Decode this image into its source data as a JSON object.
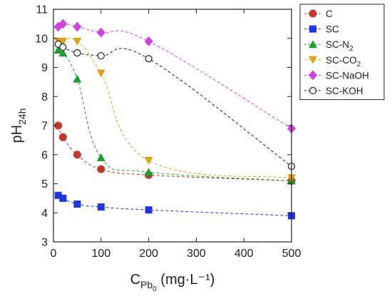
{
  "chart_data": {
    "type": "scatter",
    "xlabel": {
      "base": "C",
      "sub": "Pb",
      "subsub": "0",
      "unit": " (mg·L⁻¹)"
    },
    "ylabel": {
      "base": "pH",
      "sub": "24h"
    },
    "xlim": [
      0,
      500
    ],
    "ylim": [
      3,
      11
    ],
    "xticks": [
      0,
      100,
      200,
      300,
      400,
      500
    ],
    "yticks": [
      3,
      4,
      5,
      6,
      7,
      8,
      9,
      10,
      11
    ],
    "grid": false,
    "legend_position": "top-right outside",
    "series": [
      {
        "name": "C",
        "sub": "",
        "color": "#c0392b",
        "marker": "circle",
        "line": "dashed",
        "x": [
          10,
          20,
          50,
          100,
          200,
          500
        ],
        "y": [
          7.0,
          6.6,
          6.0,
          5.5,
          5.3,
          5.1
        ]
      },
      {
        "name": "SC",
        "sub": "",
        "color": "#1f35e0",
        "marker": "square",
        "line": "dashed",
        "x": [
          10,
          20,
          50,
          100,
          200,
          500
        ],
        "y": [
          4.6,
          4.5,
          4.3,
          4.2,
          4.1,
          3.9
        ]
      },
      {
        "name": "SC-N",
        "sub": "2",
        "color": "#1e9e2e",
        "marker": "triangle-up",
        "line": "dashed",
        "x": [
          10,
          20,
          50,
          100,
          200,
          500
        ],
        "y": [
          9.6,
          9.5,
          8.6,
          5.9,
          5.4,
          5.1
        ]
      },
      {
        "name": "SC-CO",
        "sub": "2",
        "color": "#d9a21b",
        "marker": "triangle-down",
        "line": "dashed",
        "x": [
          10,
          20,
          50,
          100,
          200,
          500
        ],
        "y": [
          9.9,
          9.9,
          9.9,
          8.8,
          5.8,
          5.2
        ]
      },
      {
        "name": "SC-NaOH",
        "sub": "",
        "color": "#cc44dd",
        "marker": "diamond",
        "line": "dashed",
        "x": [
          10,
          20,
          50,
          100,
          200,
          500
        ],
        "y": [
          10.4,
          10.5,
          10.4,
          10.2,
          9.9,
          6.9
        ]
      },
      {
        "name": "SC-KOH",
        "sub": "",
        "color": "#222222",
        "marker": "open-circle",
        "line": "dashed",
        "x": [
          10,
          20,
          50,
          100,
          200,
          500
        ],
        "y": [
          9.8,
          9.7,
          9.5,
          9.4,
          9.3,
          5.6
        ]
      }
    ]
  }
}
